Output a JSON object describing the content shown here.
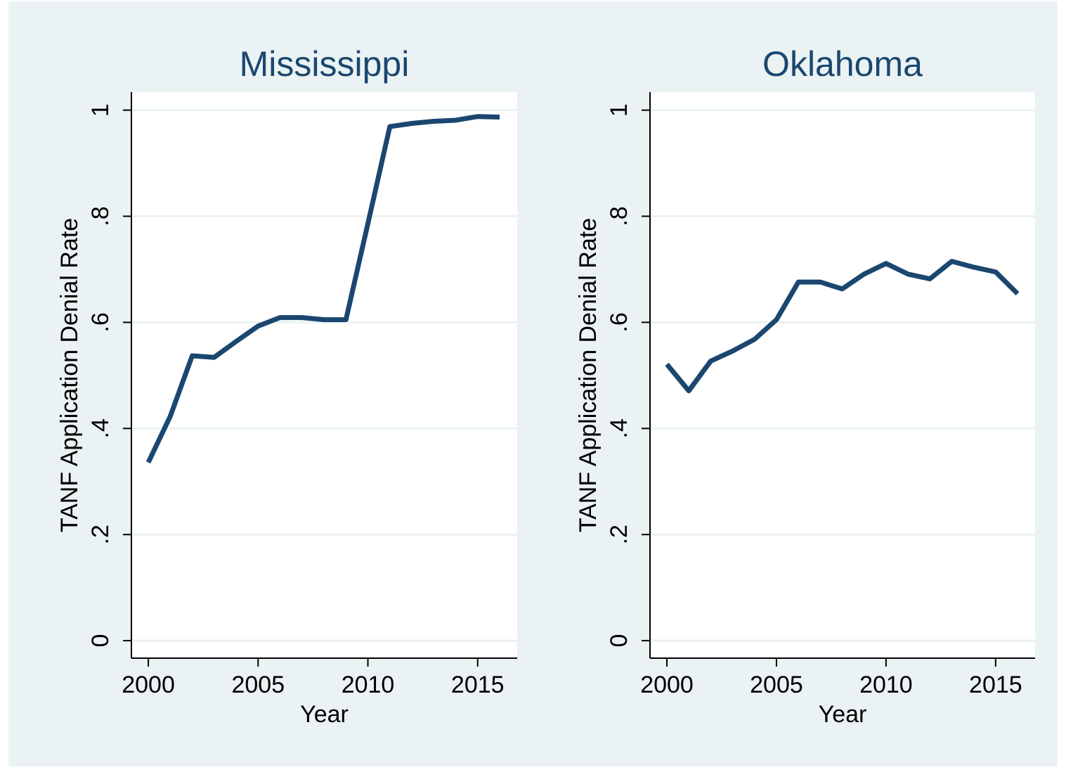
{
  "chart_data": [
    {
      "type": "line",
      "title": "Mississippi",
      "x_label": "Year",
      "y_label": "TANF Application Denial Rate",
      "x": [
        2000,
        2001,
        2002,
        2003,
        2004,
        2005,
        2006,
        2007,
        2008,
        2009,
        2010,
        2011,
        2012,
        2013,
        2014,
        2015,
        2016
      ],
      "values": [
        0.336,
        0.423,
        0.537,
        0.534,
        0.564,
        0.593,
        0.609,
        0.609,
        0.605,
        0.605,
        0.786,
        0.969,
        0.975,
        0.979,
        0.981,
        0.988,
        0.987
      ],
      "color": "#1a476f",
      "xlim": [
        1999.23,
        2016.8
      ],
      "xticks": [
        2000,
        2005,
        2010,
        2015
      ],
      "ylim": [
        -0.033,
        1.034
      ],
      "yticks": [
        0,
        {
          "value": 0.2,
          "label": ".2"
        },
        {
          "value": 0.4,
          "label": ".4"
        },
        {
          "value": 0.6,
          "label": ".6"
        },
        {
          "value": 0.8,
          "label": ".8"
        },
        1
      ],
      "grid": true
    },
    {
      "type": "line",
      "title": "Oklahoma",
      "x_label": "Year",
      "y_label": "TANF Application Denial Rate",
      "x": [
        2000,
        2001,
        2002,
        2003,
        2004,
        2005,
        2006,
        2007,
        2008,
        2009,
        2010,
        2011,
        2012,
        2013,
        2014,
        2015,
        2016
      ],
      "values": [
        0.521,
        0.471,
        0.527,
        0.546,
        0.568,
        0.605,
        0.676,
        0.676,
        0.663,
        0.691,
        0.711,
        0.691,
        0.682,
        0.715,
        0.704,
        0.695,
        0.654
      ],
      "color": "#1a476f",
      "xlim": [
        1999.23,
        2016.8
      ],
      "xticks": [
        2000,
        2005,
        2010,
        2015
      ],
      "ylim": [
        -0.033,
        1.034
      ],
      "yticks": [
        0,
        {
          "value": 0.2,
          "label": ".2"
        },
        {
          "value": 0.4,
          "label": ".4"
        },
        {
          "value": 0.6,
          "label": ".6"
        },
        {
          "value": 0.8,
          "label": ".8"
        },
        1
      ],
      "grid": true
    }
  ]
}
